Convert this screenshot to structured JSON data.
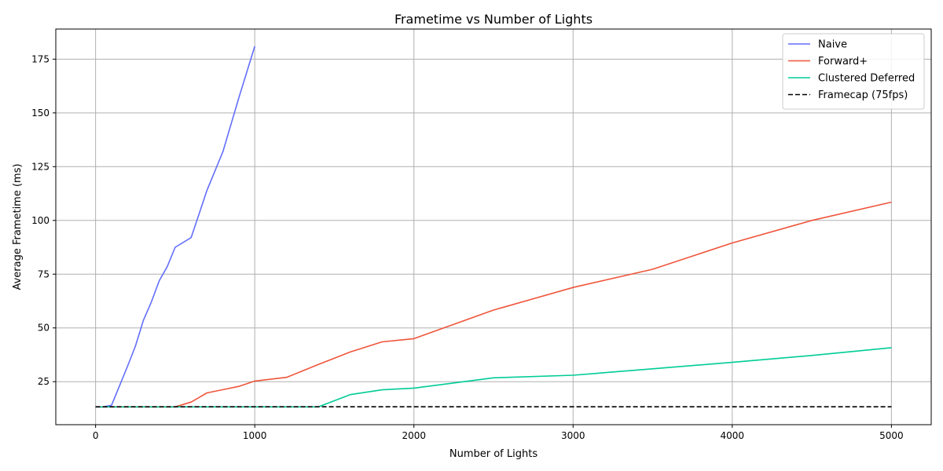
{
  "chart_data": {
    "type": "line",
    "title": "Frametime vs Number of Lights",
    "xlabel": "Number of Lights",
    "ylabel": "Average Frametime (ms)",
    "xlim": [
      -250,
      5250
    ],
    "ylim": [
      5,
      189
    ],
    "xticks": [
      0,
      1000,
      2000,
      3000,
      4000,
      5000
    ],
    "yticks": [
      25,
      50,
      75,
      100,
      125,
      150,
      175
    ],
    "grid": true,
    "legend_position": "top-right",
    "series": [
      {
        "name": "Naive",
        "color": "#636EFA",
        "style": "solid",
        "x": [
          0,
          50,
          100,
          150,
          200,
          250,
          300,
          350,
          400,
          450,
          500,
          600,
          700,
          800,
          900,
          1000
        ],
        "y": [
          13.3,
          13.3,
          14,
          23,
          32,
          41.5,
          53.5,
          62,
          72,
          78.5,
          87.5,
          92,
          114,
          132,
          157,
          181
        ]
      },
      {
        "name": "Forward+",
        "color": "#EF553B",
        "style": "solid",
        "x": [
          0,
          100,
          200,
          300,
          400,
          500,
          600,
          700,
          800,
          900,
          1000,
          1200,
          1400,
          1600,
          1800,
          2000,
          2500,
          3000,
          3500,
          4000,
          4500,
          5000
        ],
        "y": [
          13.3,
          13.3,
          13.3,
          13.3,
          13.3,
          13.3,
          15.5,
          19.8,
          21.3,
          22.8,
          25.3,
          27,
          33,
          38.8,
          43.5,
          45,
          58.3,
          68.8,
          77.3,
          89.5,
          100,
          108.5
        ]
      },
      {
        "name": "Clustered Deferred",
        "color": "#00CC96",
        "style": "solid",
        "x": [
          0,
          200,
          400,
          600,
          800,
          1000,
          1200,
          1400,
          1600,
          1800,
          2000,
          2500,
          3000,
          3500,
          4000,
          4500,
          5000
        ],
        "y": [
          13.3,
          13.3,
          13.3,
          13.3,
          13.3,
          13.3,
          13.3,
          13.3,
          19,
          21.2,
          22,
          26.8,
          28,
          31,
          34,
          37.2,
          40.8
        ]
      },
      {
        "name": "Framecap (75fps)",
        "color": "#000000",
        "style": "dashed",
        "x": [
          0,
          5000
        ],
        "y": [
          13.33,
          13.33
        ]
      }
    ]
  }
}
